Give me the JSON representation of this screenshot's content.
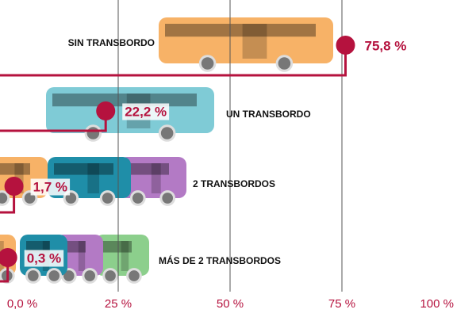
{
  "chart_data": {
    "type": "dotline",
    "categories": [
      "SIN TRANSBORDO",
      "UN TRANSBORDO",
      "2 TRANSBORDOS",
      "MÁS DE 2 TRANSBORDOS"
    ],
    "values": [
      75.8,
      22.2,
      1.7,
      0.3
    ],
    "value_labels": [
      "75,8 %",
      "22,2 %",
      "1,7 %",
      "0,3 %"
    ],
    "color": "#b5123e",
    "xlim": [
      0,
      100
    ],
    "xticks": [
      {
        "value": 0,
        "label": "0,0 %"
      },
      {
        "value": 25,
        "label": "25 %"
      },
      {
        "value": 50,
        "label": "50 %"
      },
      {
        "value": 75,
        "label": "75 %"
      },
      {
        "value": 100,
        "label": "100 %"
      }
    ],
    "grid": true
  }
}
